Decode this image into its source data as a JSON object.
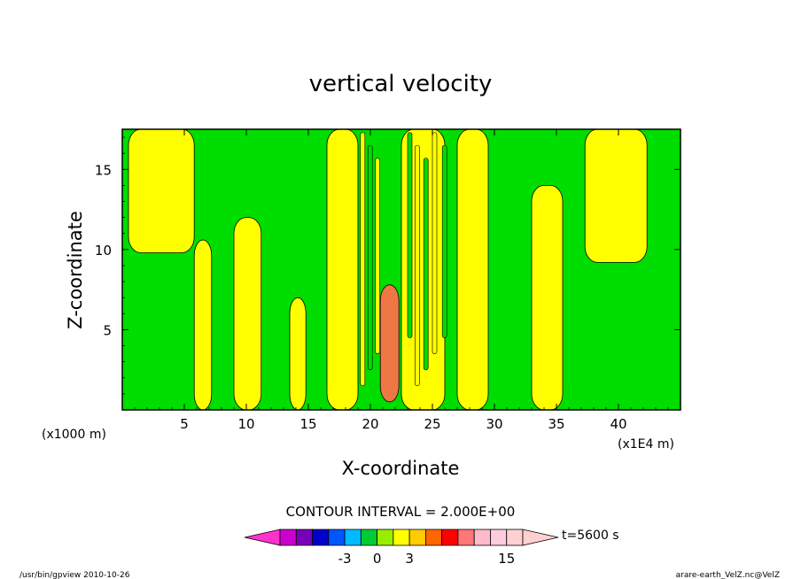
{
  "chart_data": {
    "type": "heatmap",
    "title": "vertical velocity",
    "xlabel": "X-coordinate",
    "ylabel": "Z-coordinate",
    "x_unit_left": "(x1000 m)",
    "x_unit_right": "(x1E4 m)",
    "xlim": [
      0,
      45
    ],
    "ylim": [
      0,
      17.5
    ],
    "x_ticks": [
      5,
      10,
      15,
      20,
      25,
      30,
      35,
      40
    ],
    "y_ticks": [
      5,
      10,
      15
    ],
    "contour_interval_text": "CONTOUR INTERVAL = 2.000E+00",
    "time_label": "t=5600 s",
    "colorbar": {
      "levels": [
        -11,
        -9,
        -7,
        -5,
        -3,
        -1,
        0,
        1,
        3,
        5,
        7,
        9,
        11,
        13,
        15,
        17
      ],
      "colors": [
        "#ff33cc",
        "#cc00cc",
        "#7700bb",
        "#0000cc",
        "#0055ff",
        "#00bbff",
        "#00cc33",
        "#99ee00",
        "#ffff00",
        "#ffcc00",
        "#ff6600",
        "#ff0000",
        "#ff7777",
        "#ffbbcc",
        "#ffccdd",
        "#ffd0d0"
      ],
      "tick_labels": [
        {
          "value": -3,
          "text": "-3"
        },
        {
          "value": 0,
          "text": "0"
        },
        {
          "value": 3,
          "text": "3"
        },
        {
          "value": 15,
          "text": "15"
        }
      ]
    },
    "regions": [
      {
        "color": "yellow",
        "x": [
          0.5,
          5.8
        ],
        "z": [
          9.8,
          17.5
        ]
      },
      {
        "color": "yellow",
        "x": [
          5.8,
          7.2
        ],
        "z": [
          0,
          10.6
        ]
      },
      {
        "color": "yellow",
        "x": [
          9.0,
          11.2
        ],
        "z": [
          0,
          12.0
        ]
      },
      {
        "color": "yellow",
        "x": [
          13.5,
          14.8
        ],
        "z": [
          0,
          7.0
        ]
      },
      {
        "color": "yellow",
        "x": [
          16.5,
          19.0
        ],
        "z": [
          0,
          17.5
        ]
      },
      {
        "color": "orange",
        "x": [
          20.8,
          22.3
        ],
        "z": [
          0.5,
          7.8
        ]
      },
      {
        "color": "yellow",
        "x": [
          22.5,
          26.0
        ],
        "z": [
          0,
          17.5
        ]
      },
      {
        "color": "yellow",
        "x": [
          27.0,
          29.5
        ],
        "z": [
          0,
          17.5
        ]
      },
      {
        "color": "yellow",
        "x": [
          33.0,
          35.5
        ],
        "z": [
          0,
          14.0
        ]
      },
      {
        "color": "yellow",
        "x": [
          37.3,
          42.3
        ],
        "z": [
          9.2,
          17.5
        ]
      }
    ]
  },
  "footer": {
    "left": "/usr/bin/gpview   2010-10-26",
    "right": "arare-earth_VelZ.nc@VelZ"
  }
}
